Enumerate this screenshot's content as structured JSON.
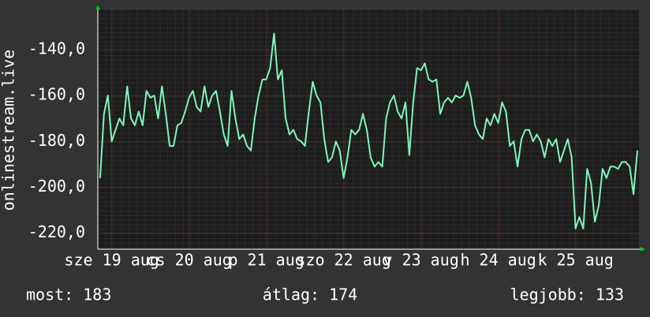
{
  "chart_data": {
    "type": "line",
    "ylabel": "onlinestream.live",
    "x": [
      18.85,
      18.9,
      18.95,
      19,
      19.05,
      19.1,
      19.15,
      19.2,
      19.25,
      19.3,
      19.35,
      19.4,
      19.45,
      19.5,
      19.55,
      19.6,
      19.65,
      19.7,
      19.75,
      19.8,
      19.85,
      19.9,
      19.95,
      20,
      20.05,
      20.1,
      20.15,
      20.2,
      20.25,
      20.3,
      20.35,
      20.4,
      20.45,
      20.5,
      20.55,
      20.6,
      20.65,
      20.7,
      20.75,
      20.8,
      20.85,
      20.9,
      20.95,
      21,
      21.05,
      21.1,
      21.15,
      21.2,
      21.25,
      21.3,
      21.35,
      21.4,
      21.45,
      21.5,
      21.55,
      21.6,
      21.65,
      21.7,
      21.75,
      21.8,
      21.85,
      21.9,
      21.95,
      22,
      22.05,
      22.1,
      22.15,
      22.2,
      22.25,
      22.3,
      22.35,
      22.4,
      22.45,
      22.5,
      22.55,
      22.6,
      22.65,
      22.7,
      22.75,
      22.8,
      22.85,
      22.9,
      22.95,
      23,
      23.05,
      23.1,
      23.15,
      23.2,
      23.25,
      23.3,
      23.35,
      23.4,
      23.45,
      23.5,
      23.55,
      23.6,
      23.65,
      23.7,
      23.75,
      23.8,
      23.85,
      23.9,
      23.95,
      24,
      24.05,
      24.1,
      24.15,
      24.2,
      24.25,
      24.3,
      24.35,
      24.4,
      24.45,
      24.5,
      24.55,
      24.6,
      24.65,
      24.7,
      24.75,
      24.8,
      24.85,
      24.9,
      24.95,
      25,
      25.05,
      25.1,
      25.15,
      25.2,
      25.25,
      25.3,
      25.35,
      25.4,
      25.45,
      25.5,
      25.55,
      25.6,
      25.65,
      25.7,
      25.75,
      25.8
    ],
    "series": [
      {
        "color": "#7ff5b8",
        "values": [
          -196,
          -168,
          -160,
          -180,
          -175,
          -170,
          -173,
          -156,
          -170,
          -173,
          -167,
          -173,
          -158,
          -161,
          -160,
          -170,
          -156,
          -168,
          -182,
          -182,
          -173,
          -172,
          -167,
          -161,
          -158,
          -165,
          -167,
          -156,
          -165,
          -160,
          -158,
          -167,
          -177,
          -182,
          -158,
          -170,
          -179,
          -177,
          -182,
          -184,
          -170,
          -160,
          -153,
          -153,
          -148,
          -133,
          -153,
          -149,
          -170,
          -177,
          -175,
          -179,
          -180,
          -182,
          -167,
          -154,
          -160,
          -163,
          -179,
          -189,
          -187,
          -180,
          -184,
          -196,
          -187,
          -175,
          -177,
          -175,
          -168,
          -175,
          -187,
          -191,
          -189,
          -191,
          -170,
          -163,
          -160,
          -167,
          -170,
          -163,
          -186,
          -163,
          -148,
          -149,
          -146,
          -153,
          -154,
          -153,
          -168,
          -163,
          -161,
          -163,
          -160,
          -161,
          -160,
          -154,
          -161,
          -173,
          -177,
          -179,
          -170,
          -173,
          -168,
          -172,
          -163,
          -167,
          -182,
          -180,
          -191,
          -179,
          -175,
          -175,
          -180,
          -177,
          -180,
          -187,
          -179,
          -182,
          -179,
          -189,
          -184,
          -179,
          -187,
          -218,
          -213,
          -218,
          -192,
          -198,
          -215,
          -208,
          -192,
          -196,
          -191,
          -191,
          -192,
          -189,
          -189,
          -191,
          -203,
          -184
        ]
      }
    ],
    "xlim": [
      18.82,
      25.82
    ],
    "xticks": [
      {
        "value": 19,
        "label": "sze 19 aug"
      },
      {
        "value": 20,
        "label": "cs 20 aug"
      },
      {
        "value": 21,
        "label": "p 21 aug"
      },
      {
        "value": 22,
        "label": "szo 22 aug"
      },
      {
        "value": 23,
        "label": "v 23 aug"
      },
      {
        "value": 24,
        "label": "h 24 aug"
      },
      {
        "value": 25,
        "label": "k 25 aug"
      }
    ],
    "ylim": [
      -227,
      -122.5
    ],
    "yticks": [
      {
        "value": -140,
        "label": "-140,0"
      },
      {
        "value": -160,
        "label": "-160,0"
      },
      {
        "value": -180,
        "label": "-180,0"
      },
      {
        "value": -200,
        "label": "-200,0"
      },
      {
        "value": -220,
        "label": "-220,0"
      }
    ],
    "grid": true,
    "stats": {
      "current": "most: 183",
      "average": "átlag: 174",
      "best": "legjobb: 133"
    }
  }
}
